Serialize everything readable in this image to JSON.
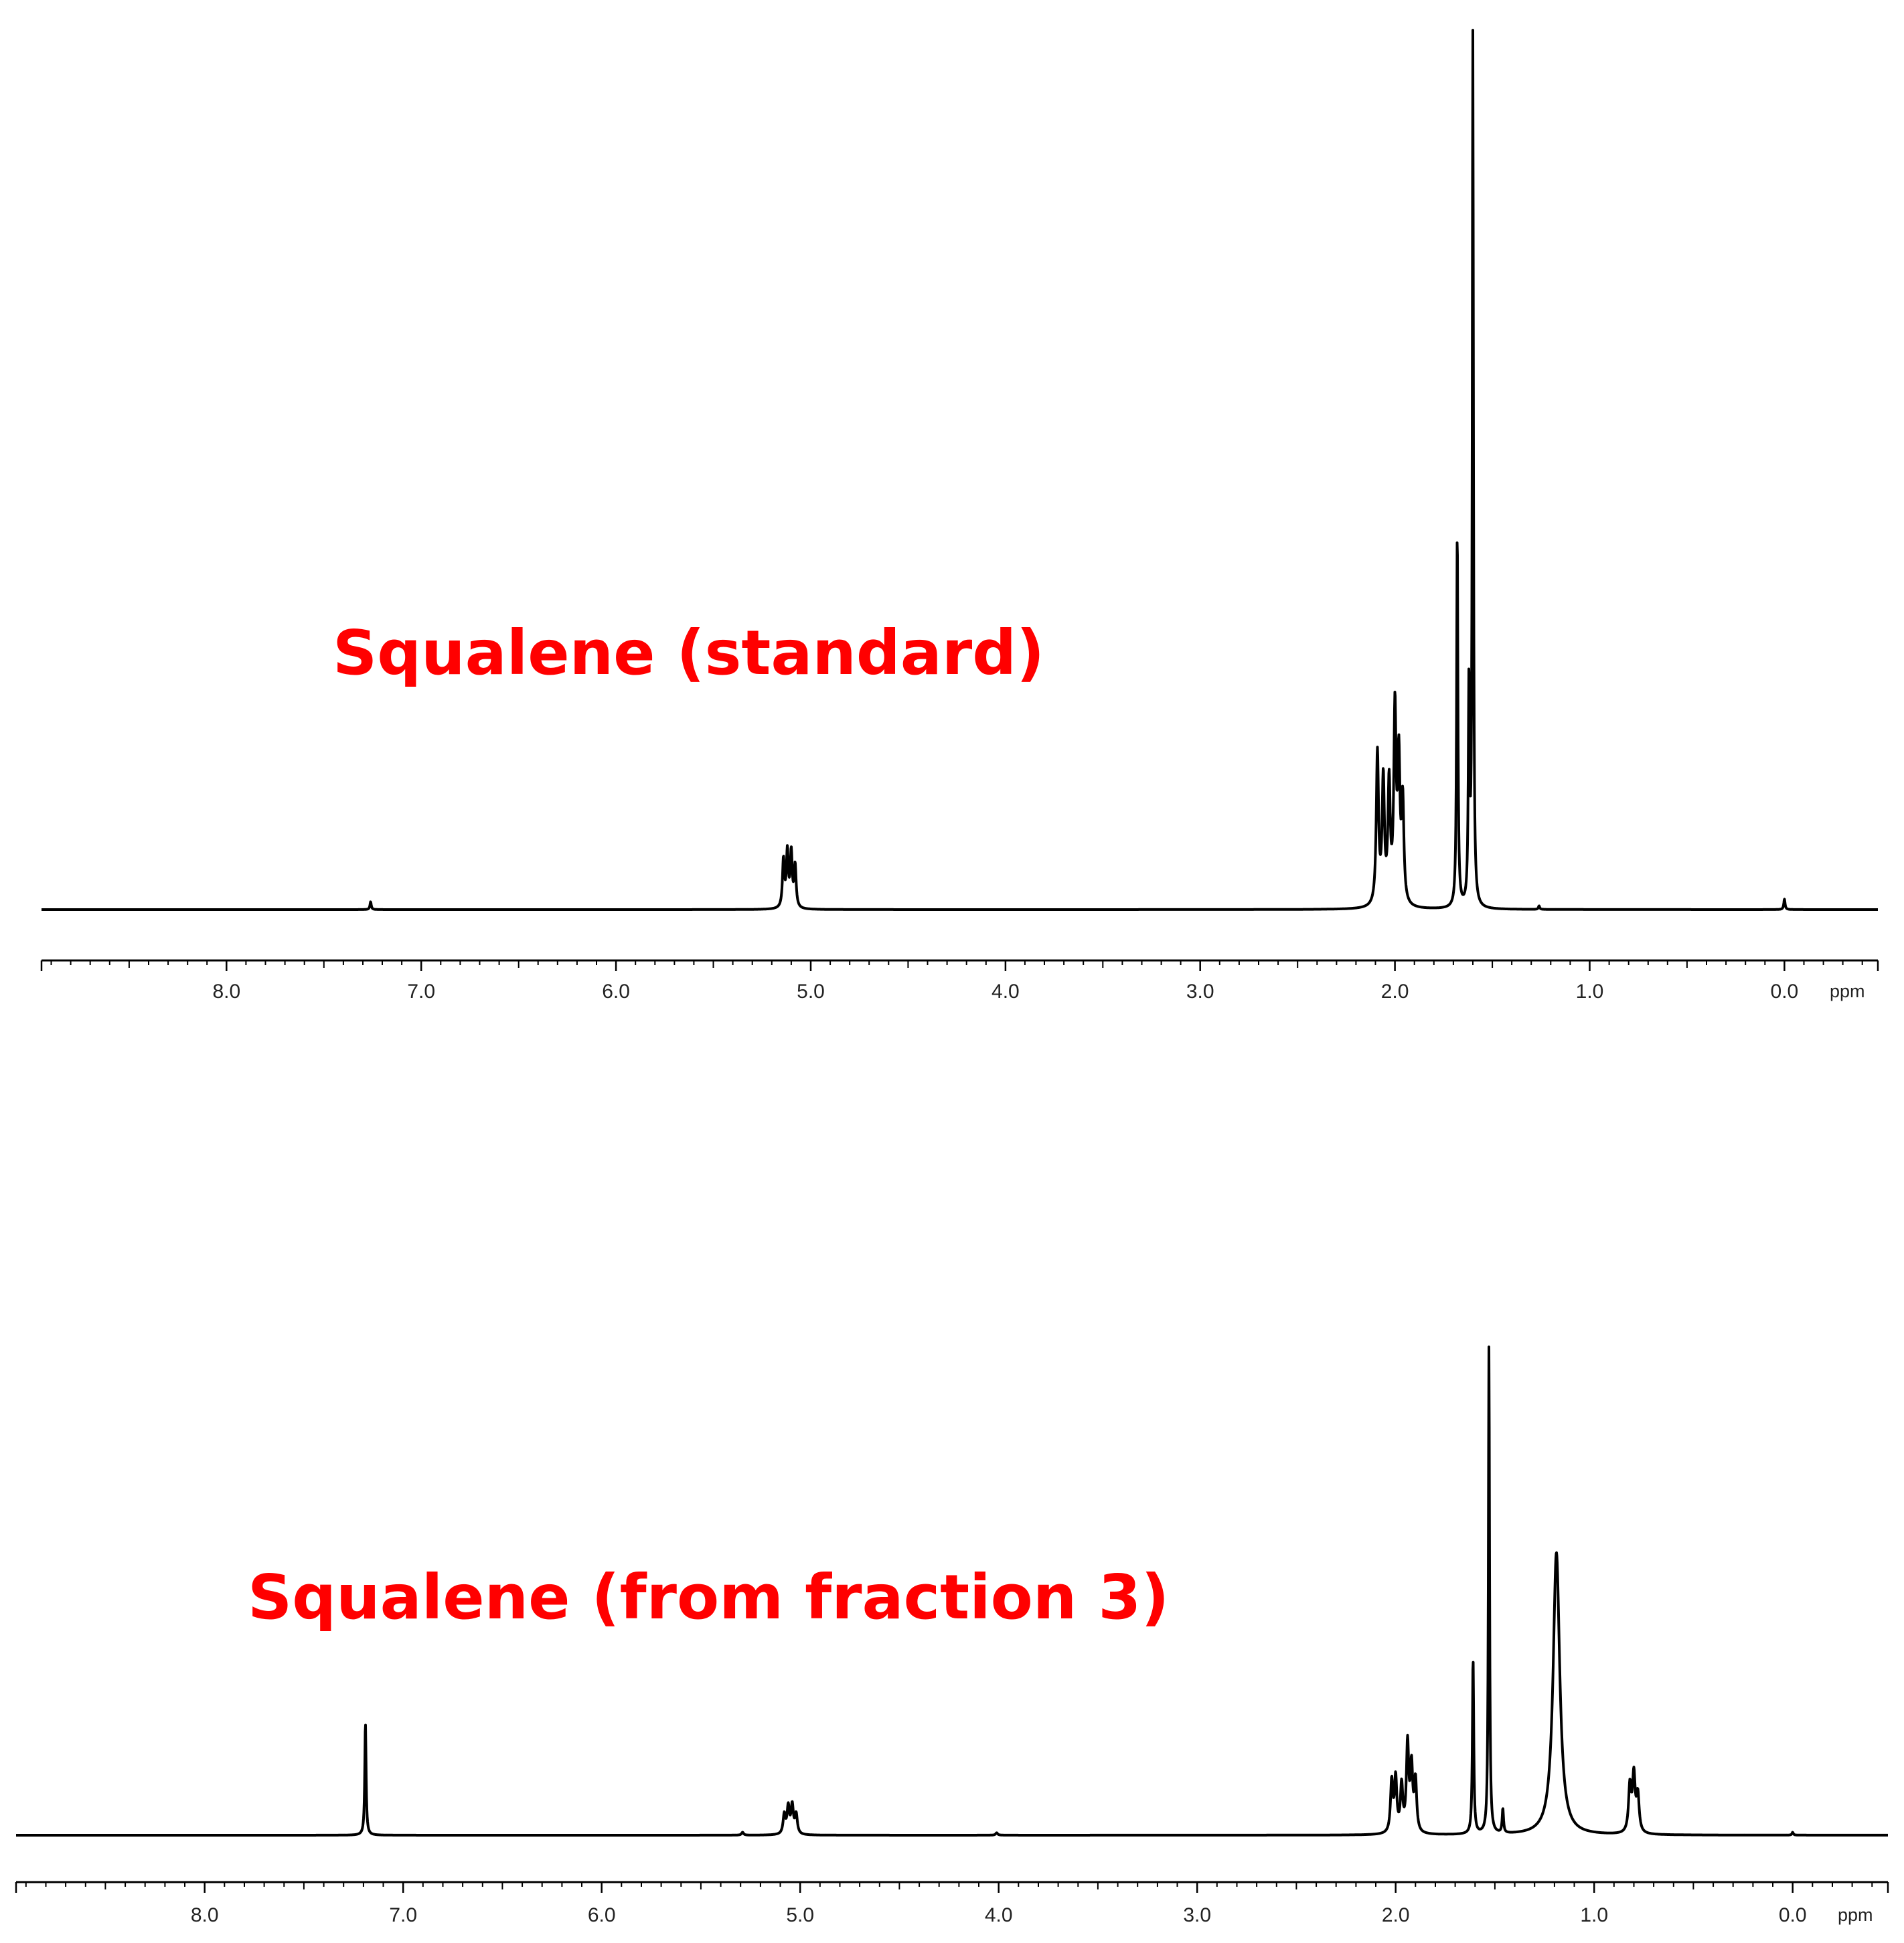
{
  "colors": {
    "label": "#ff0000",
    "trace": "#000000",
    "axis": "#000000"
  },
  "chart_data": [
    {
      "type": "line",
      "chart_kind": "1H NMR spectrum",
      "label": "Squalene  (standard)",
      "xlabel": "ppm",
      "xlim": [
        8.95,
        -0.48
      ],
      "x_reversed": true,
      "ylim": [
        0,
        100
      ],
      "grid": false,
      "ticks": [
        {
          "value": 8.0,
          "label": "8.0"
        },
        {
          "value": 7.0,
          "label": "7.0"
        },
        {
          "value": 6.0,
          "label": "6.0"
        },
        {
          "value": 5.0,
          "label": "5.0"
        },
        {
          "value": 4.0,
          "label": "4.0"
        },
        {
          "value": 3.0,
          "label": "3.0"
        },
        {
          "value": 2.0,
          "label": "2.0"
        },
        {
          "value": 1.0,
          "label": "1.0"
        },
        {
          "value": 0.0,
          "label": "0.0"
        }
      ],
      "peaks": [
        {
          "x": 7.26,
          "y": 0.9,
          "w": 0.004
        },
        {
          "x": 5.14,
          "y": 5.5,
          "w": 0.006
        },
        {
          "x": 5.12,
          "y": 6.3,
          "w": 0.006
        },
        {
          "x": 5.1,
          "y": 6.2,
          "w": 0.006
        },
        {
          "x": 5.08,
          "y": 4.8,
          "w": 0.006
        },
        {
          "x": 2.09,
          "y": 17.5,
          "w": 0.007
        },
        {
          "x": 2.06,
          "y": 14.2,
          "w": 0.007
        },
        {
          "x": 2.03,
          "y": 13.6,
          "w": 0.007
        },
        {
          "x": 2.0,
          "y": 22.0,
          "w": 0.007
        },
        {
          "x": 1.98,
          "y": 16.0,
          "w": 0.007
        },
        {
          "x": 1.96,
          "y": 11.5,
          "w": 0.007
        },
        {
          "x": 1.68,
          "y": 43.0,
          "w": 0.004
        },
        {
          "x": 1.6,
          "y": 100.0,
          "w": 0.0035
        },
        {
          "x": 1.62,
          "y": 25.0,
          "w": 0.004
        },
        {
          "x": 1.26,
          "y": 0.4,
          "w": 0.004
        },
        {
          "x": 0.0,
          "y": 1.2,
          "w": 0.004
        }
      ]
    },
    {
      "type": "line",
      "chart_kind": "1H NMR spectrum",
      "label": "Squalene  (from fraction 3)",
      "xlabel": "ppm",
      "xlim": [
        8.95,
        -0.48
      ],
      "x_reversed": true,
      "ylim": [
        0,
        100
      ],
      "grid": false,
      "ticks": [
        {
          "value": 8.0,
          "label": "8.0"
        },
        {
          "value": 7.0,
          "label": "7.0"
        },
        {
          "value": 6.0,
          "label": "6.0"
        },
        {
          "value": 5.0,
          "label": "5.0"
        },
        {
          "value": 4.0,
          "label": "4.0"
        },
        {
          "value": 3.0,
          "label": "3.0"
        },
        {
          "value": 2.0,
          "label": "2.0"
        },
        {
          "value": 1.0,
          "label": "1.0"
        },
        {
          "value": 0.0,
          "label": "0.0"
        }
      ],
      "peaks": [
        {
          "x": 7.19,
          "y": 23.0,
          "w": 0.004
        },
        {
          "x": 5.29,
          "y": 0.6,
          "w": 0.006
        },
        {
          "x": 5.08,
          "y": 4.0,
          "w": 0.007
        },
        {
          "x": 5.06,
          "y": 5.5,
          "w": 0.007
        },
        {
          "x": 5.04,
          "y": 5.8,
          "w": 0.007
        },
        {
          "x": 5.02,
          "y": 4.0,
          "w": 0.007
        },
        {
          "x": 4.01,
          "y": 0.5,
          "w": 0.006
        },
        {
          "x": 2.02,
          "y": 10.5,
          "w": 0.007
        },
        {
          "x": 2.0,
          "y": 11.0,
          "w": 0.007
        },
        {
          "x": 1.97,
          "y": 9.5,
          "w": 0.007
        },
        {
          "x": 1.94,
          "y": 18.0,
          "w": 0.007
        },
        {
          "x": 1.92,
          "y": 13.0,
          "w": 0.007
        },
        {
          "x": 1.9,
          "y": 10.5,
          "w": 0.007
        },
        {
          "x": 1.61,
          "y": 36.0,
          "w": 0.004
        },
        {
          "x": 1.53,
          "y": 100.0,
          "w": 0.0035
        },
        {
          "x": 1.46,
          "y": 5.0,
          "w": 0.004
        },
        {
          "x": 1.19,
          "y": 58.0,
          "w": 0.02
        },
        {
          "x": 0.82,
          "y": 9.5,
          "w": 0.008
        },
        {
          "x": 0.8,
          "y": 11.5,
          "w": 0.008
        },
        {
          "x": 0.78,
          "y": 7.5,
          "w": 0.008
        },
        {
          "x": 0.0,
          "y": 0.6,
          "w": 0.004
        }
      ]
    }
  ]
}
